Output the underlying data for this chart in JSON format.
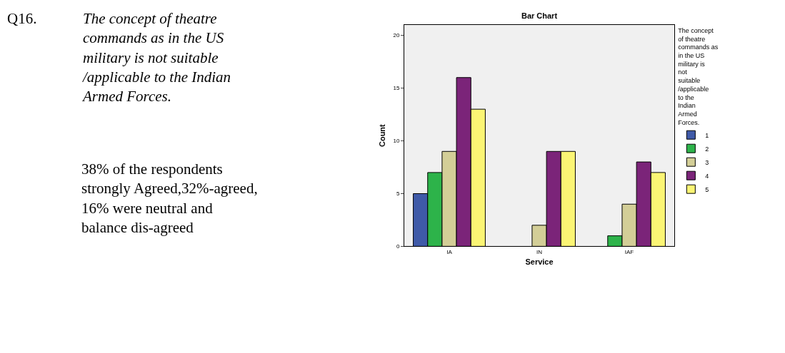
{
  "chart_data": {
    "type": "bar",
    "title": "Bar Chart",
    "xlabel": "Service",
    "ylabel": "Count",
    "legend_title": "The concept of theatre commands as in the US military is not suitable /applicable to the Indian Armed Forces.",
    "annotations": [
      "Q16.",
      "The concept of theatre commands as in the US military is not suitable /applicable to the Indian Armed Forces.",
      "38% of the respondents strongly Agreed,32%-agreed, 16% were neutral and balance dis-agreed"
    ],
    "categories": [
      "IA",
      "IN",
      "IAF"
    ],
    "series": [
      {
        "name": "1",
        "color": "#3f5aa8",
        "values": [
          5,
          null,
          null
        ]
      },
      {
        "name": "2",
        "color": "#2db34a",
        "values": [
          7,
          null,
          1
        ]
      },
      {
        "name": "3",
        "color": "#d3ce97",
        "values": [
          9,
          2,
          4
        ]
      },
      {
        "name": "4",
        "color": "#7b2479",
        "values": [
          16,
          9,
          8
        ]
      },
      {
        "name": "5",
        "color": "#fbf574",
        "values": [
          13,
          9,
          7
        ]
      }
    ],
    "ylim": [
      0,
      21
    ],
    "yticks": [
      0,
      5,
      10,
      15,
      20
    ],
    "grid": false,
    "legend": "right"
  }
}
